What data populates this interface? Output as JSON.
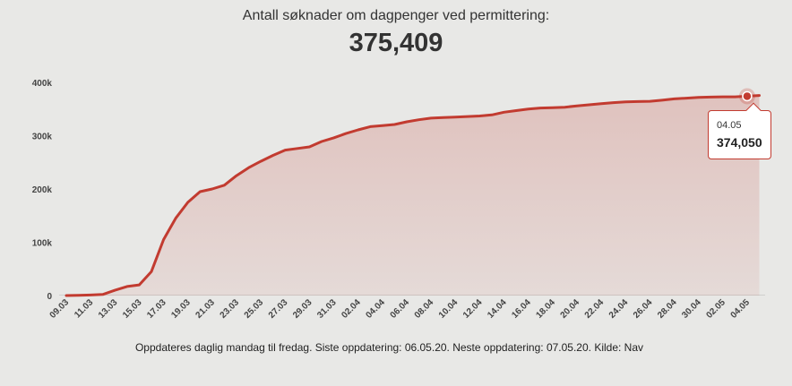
{
  "header": {
    "title": "Antall søknader om dagpenger ved permittering:",
    "total": "375,409"
  },
  "footer": {
    "note": "Oppdateres daglig mandag til fredag. Siste oppdatering: 06.05.20. Neste oppdatering: 07.05.20. Kilde: Nav"
  },
  "tooltip": {
    "date": "04.05",
    "value": "374,050"
  },
  "chart_data": {
    "type": "area",
    "x_tick_labels": [
      "09.03",
      "11.03",
      "13.03",
      "15.03",
      "17.03",
      "19.03",
      "21.03",
      "23.03",
      "25.03",
      "27.03",
      "29.03",
      "31.03",
      "02.04",
      "04.04",
      "06.04",
      "08.04",
      "10.04",
      "12.04",
      "14.04",
      "16.04",
      "18.04",
      "20.04",
      "22.04",
      "24.04",
      "26.04",
      "28.04",
      "30.04",
      "02.05",
      "04.05"
    ],
    "y_tick_labels": [
      "0",
      "100k",
      "200k",
      "300k",
      "400k"
    ],
    "ylim": [
      0,
      400000
    ],
    "series": [
      {
        "color": "#c23b30",
        "x": [
          "09.03",
          "10.03",
          "11.03",
          "12.03",
          "13.03",
          "14.03",
          "15.03",
          "16.03",
          "17.03",
          "18.03",
          "19.03",
          "20.03",
          "21.03",
          "22.03",
          "23.03",
          "24.03",
          "25.03",
          "26.03",
          "27.03",
          "28.03",
          "29.03",
          "30.03",
          "31.03",
          "01.04",
          "02.04",
          "03.04",
          "04.04",
          "05.04",
          "06.04",
          "07.04",
          "08.04",
          "09.04",
          "10.04",
          "11.04",
          "12.04",
          "13.04",
          "14.04",
          "15.04",
          "16.04",
          "17.04",
          "18.04",
          "19.04",
          "20.04",
          "21.04",
          "22.04",
          "23.04",
          "24.04",
          "25.04",
          "26.04",
          "27.04",
          "28.04",
          "29.04",
          "30.04",
          "01.05",
          "02.05",
          "03.05",
          "04.05",
          "05.05"
        ],
        "values": [
          0,
          500,
          1000,
          2000,
          10000,
          17000,
          20000,
          45000,
          105000,
          145000,
          175000,
          195000,
          200000,
          207000,
          225000,
          240000,
          252000,
          263000,
          273000,
          276000,
          279000,
          289000,
          296000,
          304000,
          311000,
          317000,
          319000,
          321000,
          326000,
          330000,
          333000,
          334000,
          335000,
          336000,
          337000,
          339000,
          344000,
          347000,
          350000,
          352000,
          352500,
          353500,
          356000,
          358000,
          360000,
          362000,
          363500,
          364000,
          364500,
          366500,
          369000,
          370500,
          372000,
          372500,
          373000,
          373000,
          374050,
          375409
        ]
      }
    ]
  }
}
